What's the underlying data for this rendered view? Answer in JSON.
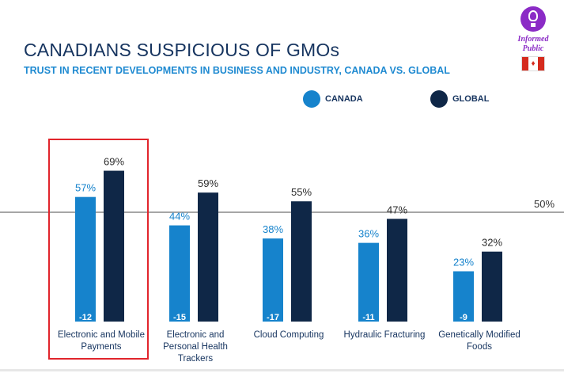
{
  "title": "CANADIANS SUSPICIOUS OF GMOs",
  "subtitle": "TRUST IN RECENT DEVELOPMENTS IN BUSINESS AND INDUSTRY, CANADA VS. GLOBAL",
  "logo": {
    "line1": "Informed",
    "line2": "Public",
    "icon": "lightbulb-icon",
    "flag": "canada-flag-icon"
  },
  "colors": {
    "canada": "#1683cc",
    "global": "#0f2747",
    "reference_line": "#a6a6a6",
    "highlight": "#e1252c",
    "text": "#16345f"
  },
  "chart_data": {
    "type": "bar",
    "title": "CANADIANS SUSPICIOUS OF GMOs",
    "subtitle": "TRUST IN RECENT DEVELOPMENTS IN BUSINESS AND INDUSTRY, CANADA VS. GLOBAL",
    "categories": [
      "Electronic and Mobile Payments",
      "Electronic and Personal Health Trackers",
      "Cloud Computing",
      "Hydraulic Fracturing",
      "Genetically Modified Foods"
    ],
    "category_labels": [
      "Electronic and Mobile\nPayments",
      "Electronic and\nPersonal Health\nTrackers",
      "Cloud Computing",
      "Hydraulic Fracturing",
      "Genetically Modified\nFoods"
    ],
    "series": [
      {
        "name": "CANADA",
        "values": [
          57,
          44,
          38,
          36,
          23
        ],
        "labels": [
          "57%",
          "44%",
          "38%",
          "36%",
          "23%"
        ]
      },
      {
        "name": "GLOBAL",
        "values": [
          69,
          59,
          55,
          47,
          32
        ],
        "labels": [
          "69%",
          "59%",
          "55%",
          "47%",
          "32%"
        ]
      }
    ],
    "differences": [
      "-12",
      "-15",
      "-17",
      "-11",
      "-9"
    ],
    "reference_line": {
      "value": 50,
      "label": "50%"
    },
    "highlighted_category": "Electronic and Mobile Payments",
    "legend_position": "top-right",
    "ylim": [
      0,
      100
    ],
    "grid": false
  }
}
